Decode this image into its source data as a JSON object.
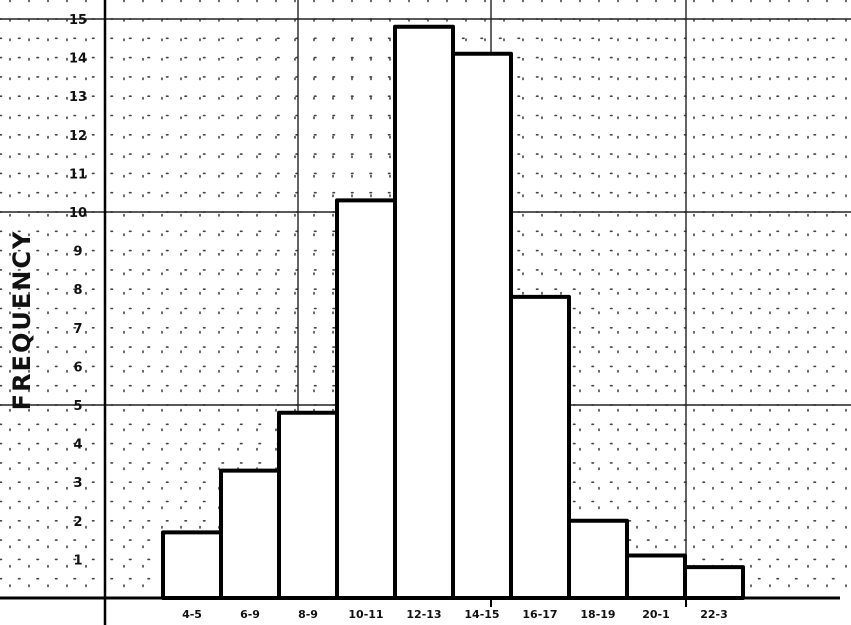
{
  "chart_data": {
    "type": "bar",
    "title": "",
    "xlabel": "",
    "ylabel": "FREQUENCY",
    "categories": [
      "4-5",
      "6-9",
      "8-9",
      "10-11",
      "12-13",
      "14-15",
      "16-17",
      "18-19",
      "20-1",
      "22-3"
    ],
    "values": [
      1.7,
      3.3,
      4.8,
      10.3,
      14.8,
      14.1,
      7.8,
      2.0,
      1.1,
      0.8
    ],
    "ylim": [
      0,
      15
    ],
    "yticks": [
      "1",
      "2",
      "3",
      "4",
      "5",
      "6",
      "7",
      "8",
      "9",
      "10",
      "11",
      "12",
      "13",
      "14",
      "15"
    ],
    "grid": true,
    "legend": "none"
  }
}
